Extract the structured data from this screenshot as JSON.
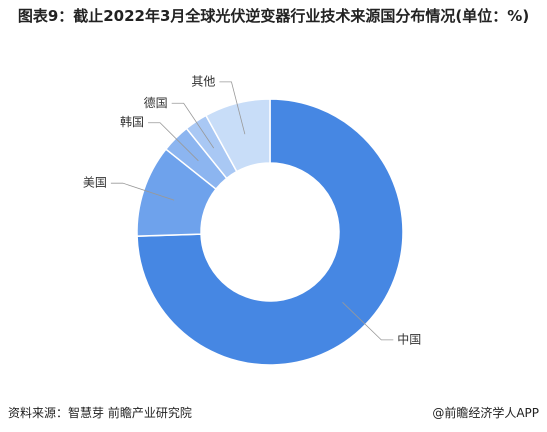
{
  "chart_data": {
    "type": "donut",
    "title": "图表9：截止2022年3月全球光伏逆变器行业技术来源国分布情况(单位：%)",
    "categories": [
      "中国",
      "美国",
      "韩国",
      "德国",
      "其他"
    ],
    "values": [
      74.5,
      11.2,
      3.5,
      2.8,
      8
    ],
    "colors": [
      "#4687e3",
      "#6ea2ec",
      "#8cb5f0",
      "#a9c8f4",
      "#c8ddf8"
    ],
    "source": "资料来源：智慧芽 前瞻产业研究院",
    "credit": "@前瞻经济学人APP"
  }
}
